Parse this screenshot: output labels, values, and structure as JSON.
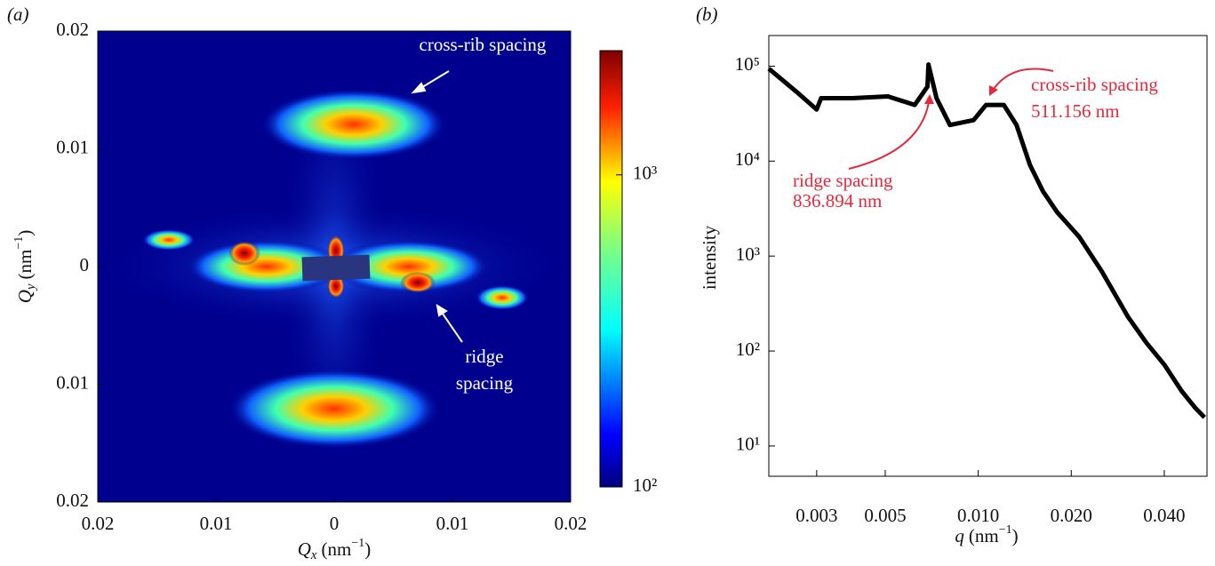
{
  "chart_data": [
    {
      "type": "heatmap",
      "panel_label": "(a)",
      "xlabel": {
        "symbol": "Q",
        "sub": "x",
        "unit": "(nm",
        "sup": "−1",
        "close": ")"
      },
      "ylabel": {
        "symbol": "Q",
        "sub": "y",
        "unit": "(nm",
        "sup": "−1",
        "close": ")"
      },
      "xlim": [
        -0.02,
        0.02
      ],
      "xticks": [
        {
          "value": -0.02,
          "label": "0.02"
        },
        {
          "value": -0.01,
          "label": "0.01"
        },
        0,
        {
          "value": 0.01,
          "label": "0.01"
        },
        {
          "value": 0.02,
          "label": "0.02"
        }
      ],
      "ylim": [
        -0.02,
        0.02
      ],
      "yticks": [
        {
          "value": 0.02,
          "label": "0.02"
        },
        {
          "value": 0.01,
          "label": "0.01"
        },
        0,
        {
          "value": -0.01,
          "label": "0.01"
        },
        {
          "value": -0.02,
          "label": "0.02"
        }
      ],
      "colorbar": {
        "scale": "log",
        "clim": [
          100,
          2500
        ],
        "ticks": [
          {
            "value": 100,
            "label": "10²"
          },
          {
            "value": 1000,
            "label": "10³"
          }
        ]
      },
      "annotations": [
        "cross-rib spacing",
        "ridge",
        "spacing"
      ]
    },
    {
      "type": "line",
      "panel_label": "(b)",
      "xlabel": {
        "symbol": "q",
        "unit": "(nm",
        "sup": "−1",
        "close": ")"
      },
      "ylabel": "intensity",
      "xscale": "log",
      "yscale": "log",
      "color": "#000000",
      "xlim": [
        0.0021,
        0.055
      ],
      "xticks": [
        0.003,
        0.005,
        {
          "value": 0.01,
          "label": "0.010"
        },
        {
          "value": 0.02,
          "label": "0.020"
        },
        {
          "value": 0.04,
          "label": "0.040"
        }
      ],
      "ylim": [
        4.8,
        210000
      ],
      "yticks": [
        {
          "value": 10,
          "label": "10¹"
        },
        {
          "value": 100,
          "label": "10²"
        },
        {
          "value": 1000,
          "label": "10³"
        },
        {
          "value": 10000,
          "label": "10⁴"
        },
        {
          "value": 100000,
          "label": "10⁵"
        }
      ],
      "x": [
        0.0021,
        0.00263,
        0.003,
        0.0031,
        0.00391,
        0.0051,
        0.00623,
        0.00685,
        0.0069,
        0.00733,
        0.0081,
        0.00966,
        0.0106,
        0.0121,
        0.0133,
        0.0147,
        0.0162,
        0.018,
        0.0212,
        0.0251,
        0.0305,
        0.035,
        0.04,
        0.0455,
        0.0505,
        0.054
      ],
      "values": [
        94000,
        51000,
        35000,
        46000,
        46000,
        48000,
        39000,
        61000,
        104000,
        46000,
        24000,
        27000,
        39000,
        39000,
        24000,
        9100,
        4800,
        2900,
        1600,
        690,
        230,
        122,
        72,
        38,
        25,
        20
      ],
      "annotations": [
        "ridge spacing",
        "836.894 nm",
        "cross-rib spacing",
        "511.156 nm"
      ]
    }
  ]
}
